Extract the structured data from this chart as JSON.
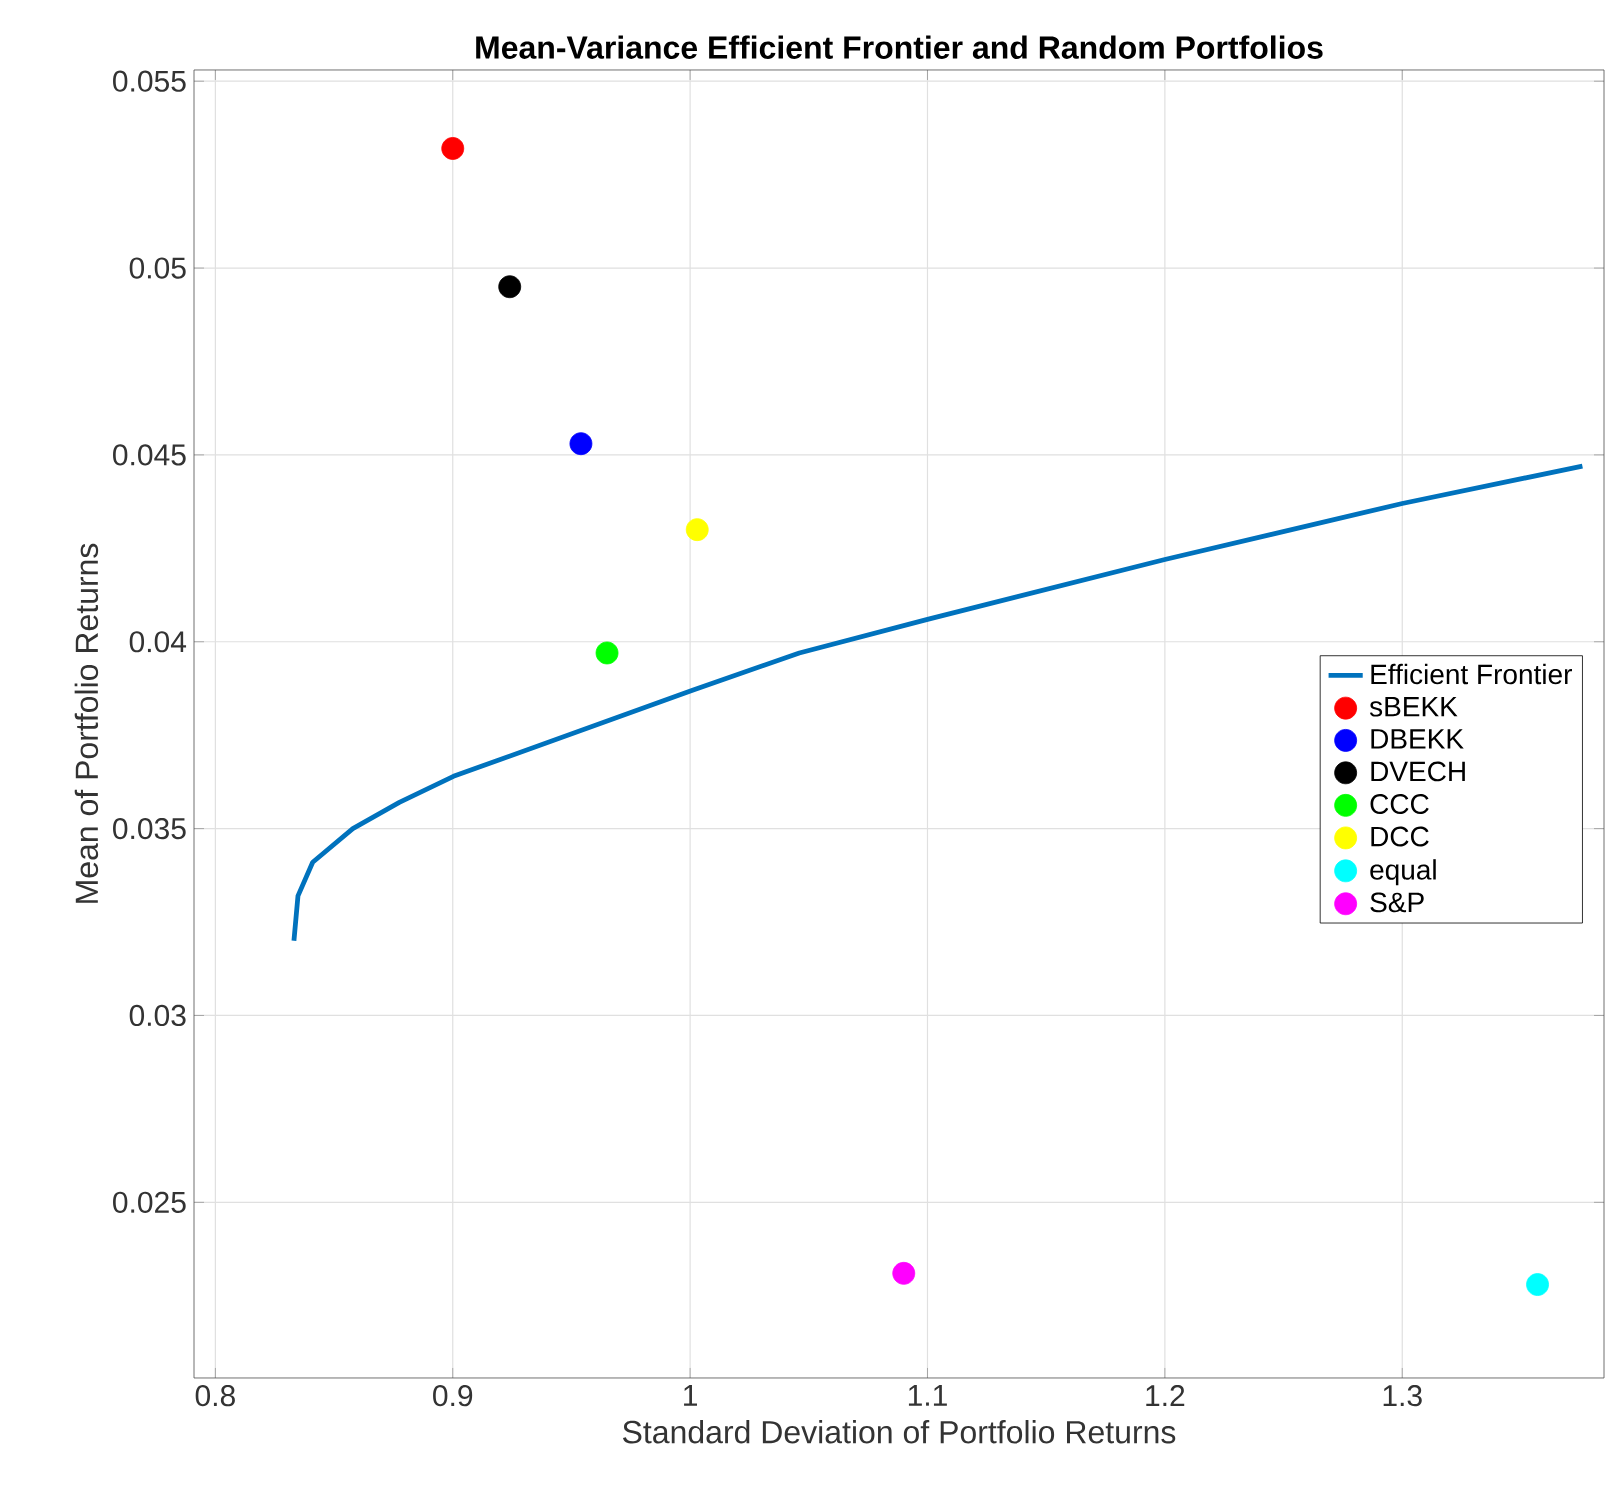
{
  "chart_data": {
    "type": "scatter",
    "title": "Mean-Variance Efficient Frontier and Random Portfolios",
    "xlabel": "Standard Deviation of Portfolio Returns",
    "ylabel": "Mean of Portfolio Returns",
    "xlim": [
      0.791,
      1.385
    ],
    "ylim": [
      0.0203,
      0.0553
    ],
    "xticks": [
      0.8,
      0.9,
      1,
      1.1,
      1.2,
      1.3
    ],
    "yticks": [
      0.025,
      0.03,
      0.035,
      0.04,
      0.045,
      0.05,
      0.055
    ],
    "grid": true,
    "legend": "right",
    "series": [
      {
        "name": "Efficient Frontier",
        "type": "line",
        "marker": "none",
        "line_style": "solid",
        "color": "#0072bd",
        "x": [
          0.8331,
          0.8348,
          0.841,
          0.8579,
          0.8775,
          0.9003,
          1.001,
          1.046,
          1.1,
          1.2,
          1.3,
          1.3759
        ],
        "values": [
          0.032,
          0.0332,
          0.0341,
          0.035,
          0.0357,
          0.0364,
          0.0387,
          0.0397,
          0.0406,
          0.0422,
          0.0437,
          0.0447
        ]
      },
      {
        "name": "sBEKK",
        "marker": "circle",
        "color": "#ff0000",
        "x": [
          0.9
        ],
        "values": [
          0.0532
        ]
      },
      {
        "name": "DBEKK",
        "marker": "circle",
        "color": "#0000ff",
        "x": [
          0.954
        ],
        "values": [
          0.0453
        ]
      },
      {
        "name": "DVECH",
        "marker": "circle",
        "color": "#000000",
        "x": [
          0.924
        ],
        "values": [
          0.0495
        ]
      },
      {
        "name": "CCC",
        "marker": "circle",
        "color": "#00ff00",
        "x": [
          0.965
        ],
        "values": [
          0.0397
        ]
      },
      {
        "name": "DCC",
        "marker": "circle",
        "color": "#ffff00",
        "x": [
          1.003
        ],
        "values": [
          0.043
        ]
      },
      {
        "name": "equal",
        "marker": "circle",
        "color": "#00ffff",
        "x": [
          1.357
        ],
        "values": [
          0.0228
        ]
      },
      {
        "name": "S&P",
        "marker": "circle",
        "color": "#ff00ff",
        "x": [
          1.09
        ],
        "values": [
          0.0231
        ]
      }
    ]
  }
}
